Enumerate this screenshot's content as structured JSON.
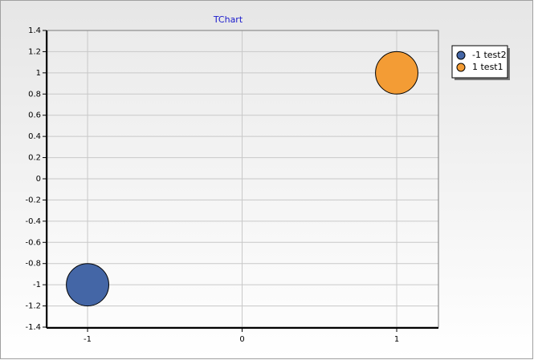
{
  "chart_data": {
    "type": "bubble",
    "title": "TChart",
    "xlim": [
      -1.26,
      1.27
    ],
    "xticks": [
      -1,
      0,
      1
    ],
    "ylim": [
      -1.4,
      1.4
    ],
    "yticks": [
      -1.4,
      -1.2,
      -1,
      -0.8,
      -0.6,
      -0.4,
      -0.2,
      0,
      0.2,
      0.4,
      0.6,
      0.8,
      1,
      1.2,
      1.4
    ],
    "grid": true,
    "legend": "right",
    "series": [
      {
        "name": "-1 test2",
        "color": "#4466a6",
        "x": [
          -1
        ],
        "values": [
          -1
        ],
        "sizes": [
          0.2
        ]
      },
      {
        "name": "1 test1",
        "color": "#f39c35",
        "x": [
          1
        ],
        "values": [
          1
        ],
        "sizes": [
          0.2
        ]
      }
    ]
  }
}
